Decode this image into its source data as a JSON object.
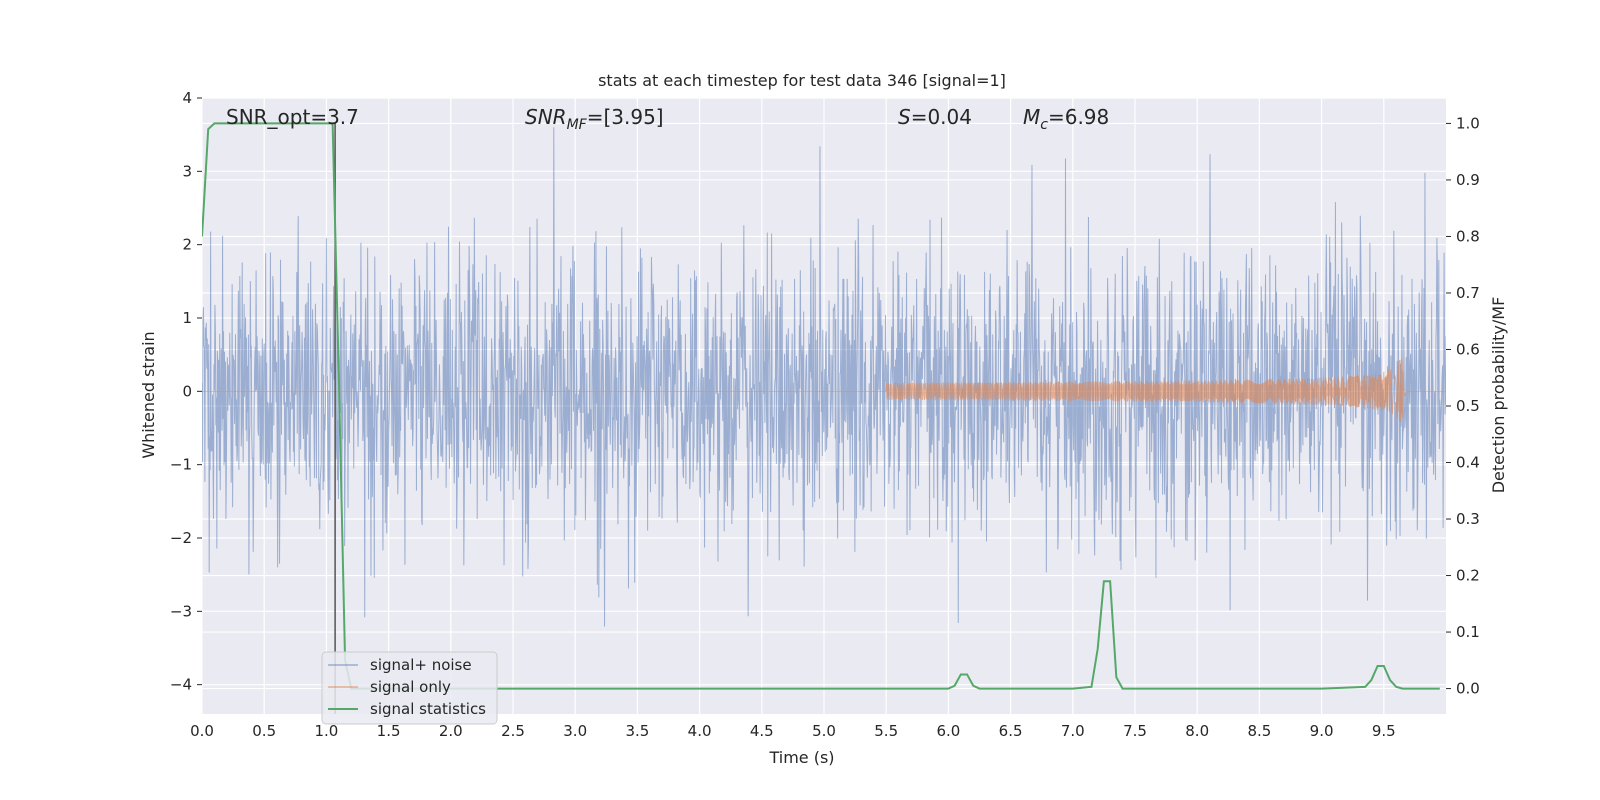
{
  "chart_data": {
    "type": "line",
    "title": "stats at each timestep for test data 346 [signal=1]",
    "xlabel": "Time (s)",
    "ylabel": "Whitened strain",
    "y2label": "Detection probability/MF",
    "xlim": [
      0.0,
      10.0
    ],
    "ylim": [
      -4.4,
      4.0
    ],
    "y2lim": [
      -0.045,
      1.045
    ],
    "x_ticks": [
      "0.0",
      "0.5",
      "1.0",
      "1.5",
      "2.0",
      "2.5",
      "3.0",
      "3.5",
      "4.0",
      "4.5",
      "5.0",
      "5.5",
      "6.0",
      "6.5",
      "7.0",
      "7.5",
      "8.0",
      "8.5",
      "9.0",
      "9.5"
    ],
    "y_ticks": [
      "4",
      "3",
      "2",
      "1",
      "0",
      "−1",
      "−2",
      "−3",
      "−4"
    ],
    "y2_ticks": [
      "1.0",
      "0.9",
      "0.8",
      "0.7",
      "0.6",
      "0.5",
      "0.4",
      "0.3",
      "0.2",
      "0.1",
      "0.0"
    ],
    "grid": true,
    "legend_position": "lower-left",
    "annotations": {
      "snr_opt": "SNR_opt=3.7",
      "snr_mf_base": "SNR",
      "snr_mf_sub": "MF",
      "snr_mf_val": "=[3.95]",
      "s_sym": "S",
      "s_val": "=0.04",
      "mc_sym": "M",
      "mc_sub": "c",
      "mc_val": "=6.98"
    },
    "series": [
      {
        "name": "signal+ noise",
        "color": "#4c72b0",
        "axis": "left",
        "description_values": "whitened noise, std approx 1, peaks to about 3.6 and -3.8"
      },
      {
        "name": "signal only",
        "color": "#dd8452",
        "axis": "left",
        "chirp": {
          "start": 5.5,
          "merger": 9.65,
          "peak_amplitude": 0.45
        }
      },
      {
        "name": "signal statistics",
        "color": "#55a868",
        "axis": "right",
        "x": [
          0.0,
          0.05,
          0.1,
          0.2,
          0.3,
          0.5,
          0.7,
          0.9,
          1.0,
          1.05,
          1.1,
          1.15,
          1.2,
          1.3,
          2.0,
          3.0,
          4.0,
          5.0,
          6.0,
          6.05,
          6.1,
          6.15,
          6.2,
          6.25,
          6.3,
          7.0,
          7.15,
          7.2,
          7.25,
          7.3,
          7.35,
          7.4,
          7.45,
          8.0,
          9.0,
          9.35,
          9.4,
          9.45,
          9.5,
          9.55,
          9.6,
          9.65,
          9.7,
          9.95
        ],
        "values": [
          0.8,
          0.99,
          1.0,
          1.0,
          1.0,
          1.0,
          1.0,
          1.0,
          1.0,
          1.0,
          0.55,
          0.05,
          0.0,
          0.0,
          0.0,
          0.0,
          0.0,
          0.0,
          0.0,
          0.005,
          0.025,
          0.025,
          0.005,
          0.0,
          0.0,
          0.0,
          0.003,
          0.07,
          0.19,
          0.19,
          0.02,
          0.0,
          0.0,
          0.0,
          0.0,
          0.003,
          0.015,
          0.04,
          0.04,
          0.015,
          0.003,
          0.0,
          0.0,
          0.0
        ]
      }
    ],
    "vertical_line": {
      "x": 1.07,
      "color": "#555555"
    }
  }
}
